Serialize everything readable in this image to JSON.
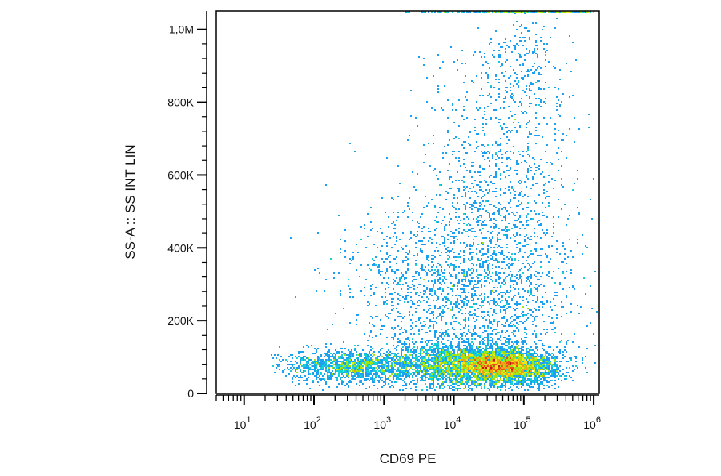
{
  "chart_data": {
    "type": "scatter",
    "title": "",
    "xlabel": "CD69 PE",
    "ylabel": "SS-A :: SS INT LIN",
    "x_scale": "log",
    "y_scale": "linear",
    "xlim": [
      4,
      1200000
    ],
    "ylim": [
      0,
      1050000
    ],
    "grid": false,
    "x_ticks": [
      {
        "value": 10,
        "base": "10",
        "exp": "1"
      },
      {
        "value": 100,
        "base": "10",
        "exp": "2"
      },
      {
        "value": 1000,
        "base": "10",
        "exp": "3"
      },
      {
        "value": 10000,
        "base": "10",
        "exp": "4"
      },
      {
        "value": 100000,
        "base": "10",
        "exp": "5"
      },
      {
        "value": 1000000,
        "base": "10",
        "exp": "6"
      }
    ],
    "y_ticks": [
      {
        "value": 0,
        "label": "0"
      },
      {
        "value": 200000,
        "label": "200K"
      },
      {
        "value": 400000,
        "label": "400K"
      },
      {
        "value": 600000,
        "label": "600K"
      },
      {
        "value": 800000,
        "label": "800K"
      },
      {
        "value": 1000000,
        "label": "1,0M"
      }
    ],
    "density_colors": [
      "#1414b4",
      "#1e5af0",
      "#1ea0f0",
      "#14d2d2",
      "#28d250",
      "#a0e614",
      "#f0e61e",
      "#f0a014",
      "#e65014",
      "#c81414"
    ],
    "populations": [
      {
        "name_hidden": true,
        "center_log10_x": 4.75,
        "center_y": 75000,
        "spread_log10_x": 0.35,
        "spread_y": 22000,
        "weight": 3000
      },
      {
        "name_hidden": true,
        "center_log10_x": 4.1,
        "center_y": 80000,
        "spread_log10_x": 0.55,
        "spread_y": 30000,
        "weight": 2600
      },
      {
        "name_hidden": true,
        "center_log10_x": 2.5,
        "center_y": 75000,
        "spread_log10_x": 0.5,
        "spread_y": 22000,
        "weight": 1300
      },
      {
        "name_hidden": true,
        "center_log10_x": 4.5,
        "center_y": 260000,
        "spread_log10_x": 0.6,
        "spread_y": 130000,
        "weight": 1300
      },
      {
        "name_hidden": true,
        "center_log10_x": 4.6,
        "center_y": 560000,
        "spread_log10_x": 0.55,
        "spread_y": 200000,
        "weight": 1000
      },
      {
        "name_hidden": true,
        "center_log10_x": 3.4,
        "center_y": 300000,
        "spread_log10_x": 0.55,
        "spread_y": 110000,
        "weight": 600
      },
      {
        "name_hidden": true,
        "center_log10_x": 5.0,
        "center_y": 900000,
        "spread_log10_x": 0.3,
        "spread_y": 90000,
        "weight": 200
      }
    ],
    "saturated_top_band": {
      "log10_x_from": 3.1,
      "log10_x_to": 6.0,
      "y": 1050000,
      "count": 220
    }
  }
}
